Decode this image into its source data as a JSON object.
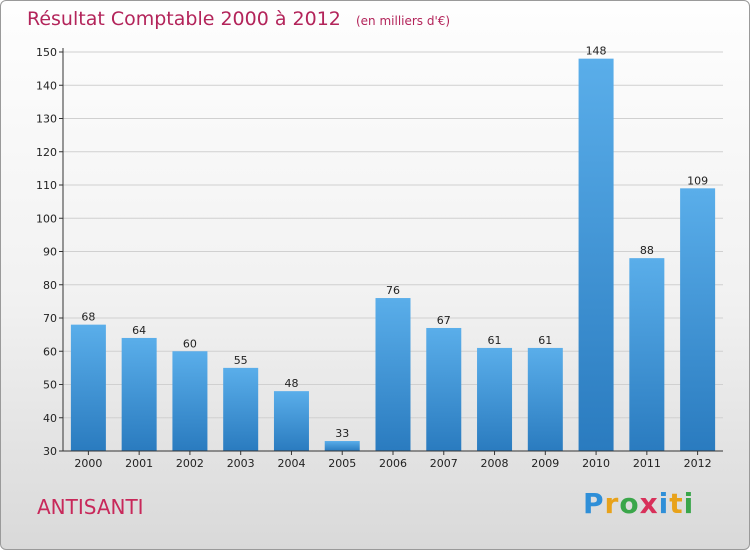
{
  "title": "Résultat Comptable 2000 à 2012",
  "subtitle": "(en milliers d'€)",
  "place": "ANTISANTI",
  "logo": {
    "text": "Proxiti",
    "letters": [
      {
        "ch": "P",
        "color": "#2f8fd8"
      },
      {
        "ch": "r",
        "color": "#e8a21a"
      },
      {
        "ch": "o",
        "color": "#3aa64a"
      },
      {
        "ch": "x",
        "color": "#d8305a"
      },
      {
        "ch": "i",
        "color": "#2f8fd8"
      },
      {
        "ch": "t",
        "color": "#e8a21a"
      },
      {
        "ch": "i",
        "color": "#3aa64a"
      }
    ]
  },
  "colors": {
    "bar_light": "#5aaeea",
    "bar_dark": "#2a7bbf",
    "grid": "#d0d0d0",
    "axis": "#333333"
  },
  "chart_data": {
    "type": "bar",
    "categories": [
      "2000",
      "2001",
      "2002",
      "2003",
      "2004",
      "2005",
      "2006",
      "2007",
      "2008",
      "2009",
      "2010",
      "2011",
      "2012"
    ],
    "values": [
      68,
      64,
      60,
      55,
      48,
      33,
      76,
      67,
      61,
      61,
      148,
      88,
      109
    ],
    "title": "Résultat Comptable 2000 à 2012",
    "subtitle": "(en milliers d'€)",
    "ylim": [
      30,
      150
    ],
    "yticks": [
      30,
      40,
      50,
      60,
      70,
      80,
      90,
      100,
      110,
      120,
      130,
      140,
      150
    ],
    "grid": true,
    "legend": "none"
  }
}
